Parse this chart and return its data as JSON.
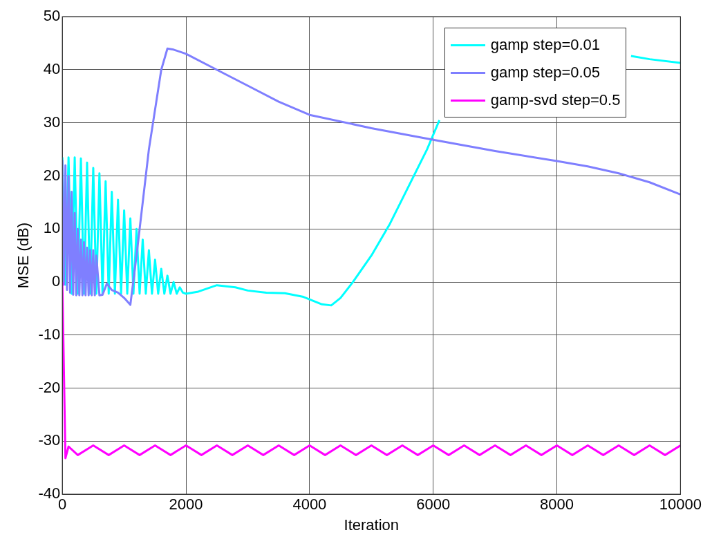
{
  "chart_data": {
    "type": "line",
    "xlabel": "Iteration",
    "ylabel": "MSE (dB)",
    "xlim": [
      0,
      10000
    ],
    "ylim": [
      -40,
      50
    ],
    "xticks": [
      0,
      2000,
      4000,
      6000,
      8000,
      10000
    ],
    "yticks": [
      -40,
      -30,
      -20,
      -10,
      0,
      10,
      20,
      30,
      40,
      50
    ],
    "grid": true,
    "legend": "top right",
    "line_style": "solid",
    "marker": "none",
    "series": [
      {
        "name": "gamp step=0.01",
        "color": "#00ffff",
        "x": [
          0,
          50,
          100,
          150,
          200,
          250,
          300,
          350,
          400,
          450,
          500,
          550,
          600,
          650,
          700,
          750,
          800,
          850,
          900,
          950,
          1000,
          1050,
          1100,
          1150,
          1200,
          1250,
          1300,
          1350,
          1400,
          1450,
          1500,
          1550,
          1600,
          1650,
          1700,
          1750,
          1800,
          1850,
          1900,
          1950,
          2000,
          2200,
          2500,
          2800,
          3000,
          3300,
          3600,
          3900,
          4200,
          4350,
          4500,
          4700,
          5000,
          5300,
          5600,
          5900,
          6100,
          6300,
          9000,
          9200,
          9500,
          10000
        ],
        "values": [
          23.5,
          -0.5,
          23.5,
          -2.2,
          23.5,
          -2.2,
          23.3,
          -2.2,
          22.5,
          -2.2,
          21.5,
          -2.2,
          20.5,
          -2.2,
          19,
          -2.2,
          17,
          -2.2,
          15.5,
          -2.2,
          13.5,
          -2.2,
          12,
          -2.2,
          10,
          -2.2,
          8,
          -2.2,
          6,
          -2.2,
          4.2,
          -2.2,
          2.5,
          -2.2,
          1.2,
          -2.2,
          0,
          -2.2,
          -1,
          -2,
          -2.2,
          -1.8,
          -0.6,
          -1,
          -1.6,
          -2,
          -2.1,
          -2.8,
          -4.2,
          -4.4,
          -3,
          0,
          5,
          11,
          18,
          25,
          30.5,
          null,
          null,
          42.6,
          42,
          41.3
        ]
      },
      {
        "name": "gamp step=0.05",
        "color": "#7f7fff",
        "x": [
          0,
          25,
          50,
          75,
          100,
          125,
          150,
          175,
          200,
          225,
          250,
          275,
          300,
          325,
          350,
          375,
          400,
          425,
          450,
          475,
          500,
          525,
          550,
          600,
          650,
          720,
          800,
          900,
          1000,
          1100,
          1200,
          1400,
          1600,
          1700,
          1800,
          2000,
          2500,
          3000,
          3500,
          4000,
          5000,
          6000,
          7000,
          8000,
          8500,
          9000,
          9500,
          10000
        ],
        "values": [
          23,
          -0.5,
          22,
          -1.5,
          20,
          -2,
          17,
          -2.4,
          13,
          -2.5,
          10,
          -2.5,
          8,
          -2.5,
          7.5,
          -2.5,
          6.5,
          -2.5,
          6,
          -2.5,
          6,
          -2.5,
          5,
          -2.5,
          -2.4,
          -0.3,
          -1.5,
          -2,
          -3,
          -4.3,
          5,
          25,
          40,
          44,
          43.8,
          43,
          40,
          37,
          34,
          31.5,
          29,
          26.8,
          24.7,
          22.8,
          21.8,
          20.5,
          18.8,
          16.5
        ]
      },
      {
        "name": "gamp-svd step=0.5",
        "color": "#ff00ff",
        "x": [
          0,
          30,
          50,
          100,
          250,
          500,
          750,
          1000,
          1250,
          1500,
          1750,
          2000,
          2250,
          2500,
          2750,
          3000,
          3250,
          3500,
          3750,
          4000,
          4250,
          4500,
          4750,
          5000,
          5250,
          5500,
          5750,
          6000,
          6250,
          6500,
          6750,
          7000,
          7250,
          7500,
          7750,
          8000,
          8250,
          8500,
          8750,
          9000,
          9250,
          9500,
          9750,
          10000
        ],
        "values": [
          0,
          -20,
          -33.2,
          -31,
          -32.6,
          -30.8,
          -32.6,
          -30.8,
          -32.6,
          -30.8,
          -32.6,
          -30.8,
          -32.6,
          -30.8,
          -32.6,
          -30.8,
          -32.6,
          -30.8,
          -32.6,
          -30.8,
          -32.6,
          -30.8,
          -32.6,
          -30.8,
          -32.6,
          -30.8,
          -32.6,
          -30.8,
          -32.6,
          -30.8,
          -32.6,
          -30.8,
          -32.6,
          -30.8,
          -32.6,
          -30.8,
          -32.6,
          -30.8,
          -32.6,
          -30.8,
          -32.6,
          -30.8,
          -32.6,
          -30.8
        ]
      }
    ]
  }
}
